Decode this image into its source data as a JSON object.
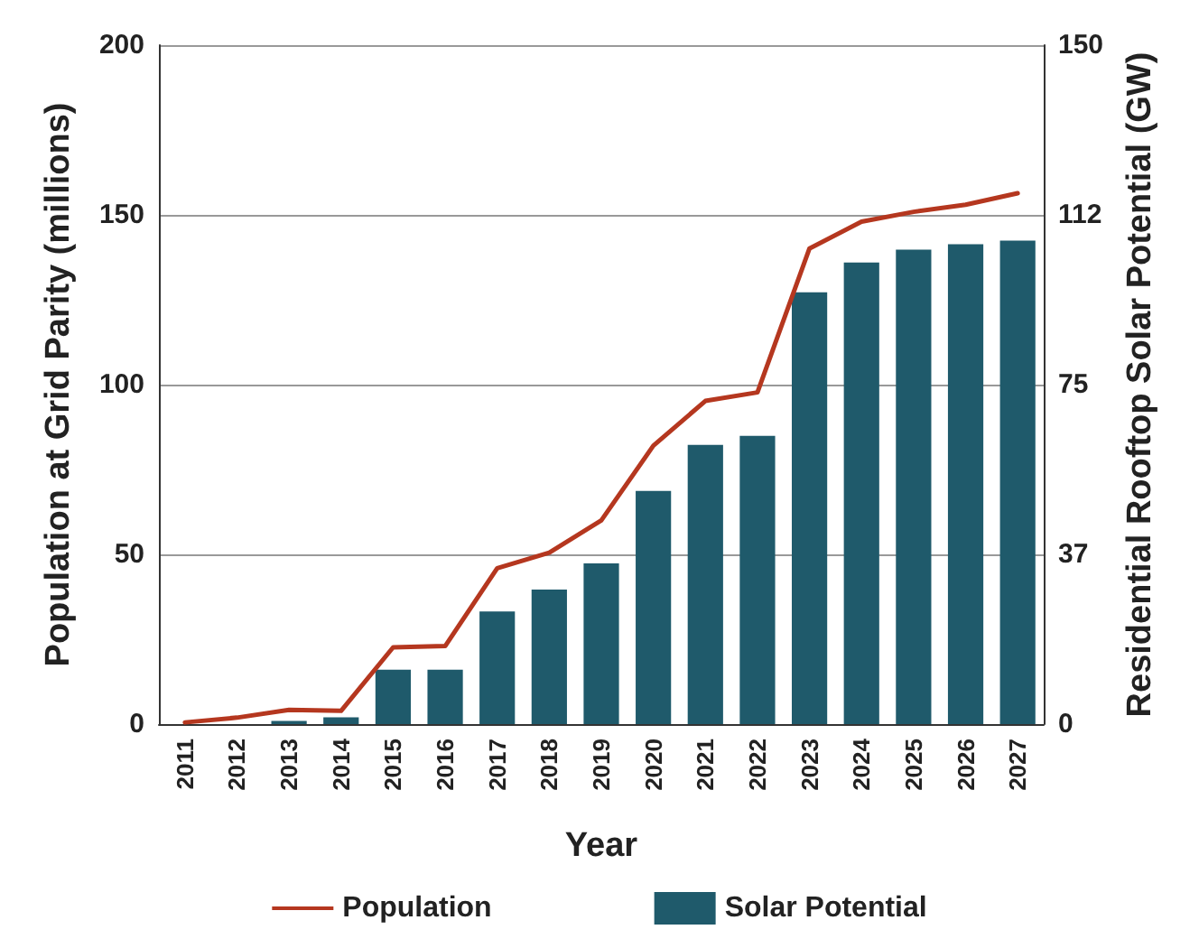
{
  "chart_data": {
    "type": "bar",
    "xlabel": "Year",
    "ylabel": "Population at Grid Parity (millions)",
    "y2label": "Residential Rooftop Solar Potential (GW)",
    "categories": [
      "2011",
      "2012",
      "2013",
      "2014",
      "2015",
      "2016",
      "2017",
      "2018",
      "2019",
      "2020",
      "2021",
      "2022",
      "2023",
      "2024",
      "2025",
      "2026",
      "2027"
    ],
    "series": [
      {
        "name": "Population",
        "type": "line",
        "color": "#b5371f",
        "values": [
          0.5,
          1.9,
          4.2,
          3.9,
          22.6,
          23,
          45.9,
          50.5,
          60,
          82,
          95.2,
          97.7,
          140.1,
          148,
          150.9,
          153,
          156.4
        ]
      },
      {
        "name": "Solar Potential",
        "axis": "y2",
        "color": "#1f5a6b",
        "values": [
          0,
          0,
          0.7,
          1.5,
          12,
          12,
          24.9,
          29.7,
          35.5,
          51.5,
          61.7,
          63.7,
          95.4,
          102,
          104.8,
          106,
          106.8
        ]
      }
    ],
    "ylim": [
      0,
      200
    ],
    "yticks": [
      0,
      50,
      100,
      150,
      200
    ],
    "y2lim": [
      0,
      150
    ],
    "y2ticks": [
      0,
      {
        "value": 37.5,
        "label": "37"
      },
      75,
      {
        "value": 112.5,
        "label": "112"
      },
      150
    ],
    "grid": "y",
    "legend": "bottom",
    "marker": "none",
    "line_style": "solid"
  }
}
